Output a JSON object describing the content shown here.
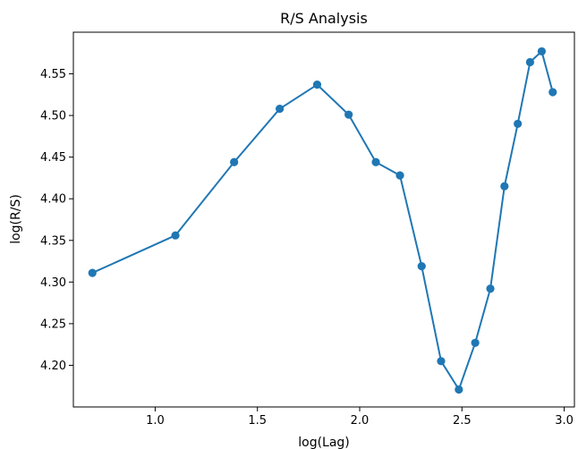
{
  "chart_data": {
    "type": "line",
    "title": "R/S Analysis",
    "xlabel": "log(Lag)",
    "ylabel": "log(R/S)",
    "xlim": [
      0.6,
      3.05
    ],
    "ylim": [
      4.15,
      4.6
    ],
    "x_ticks": [
      1.0,
      1.5,
      2.0,
      2.5,
      3.0
    ],
    "x_tick_labels": [
      "1.0",
      "1.5",
      "2.0",
      "2.5",
      "3.0"
    ],
    "y_ticks": [
      4.2,
      4.25,
      4.3,
      4.35,
      4.4,
      4.45,
      4.5,
      4.55
    ],
    "y_tick_labels": [
      "4.20",
      "4.25",
      "4.30",
      "4.35",
      "4.40",
      "4.45",
      "4.50",
      "4.55"
    ],
    "grid": false,
    "series": [
      {
        "color": "#1f77b4",
        "marker": "circle",
        "x": [
          0.693,
          1.099,
          1.386,
          1.609,
          1.792,
          1.946,
          2.079,
          2.197,
          2.303,
          2.398,
          2.485,
          2.565,
          2.639,
          2.708,
          2.773,
          2.833,
          2.89,
          2.944
        ],
        "y": [
          4.311,
          4.356,
          4.444,
          4.508,
          4.537,
          4.501,
          4.444,
          4.428,
          4.319,
          4.205,
          4.171,
          4.227,
          4.292,
          4.415,
          4.49,
          4.564,
          4.577,
          4.528
        ]
      }
    ]
  }
}
